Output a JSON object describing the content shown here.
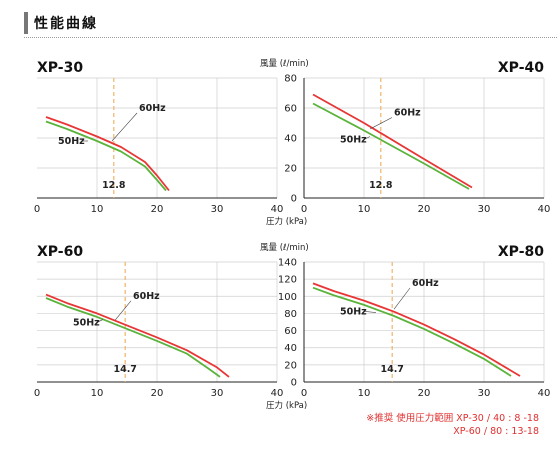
{
  "header": {
    "title": "性能曲線"
  },
  "note": {
    "line1": "※推奨 使用圧力範囲  XP-30 / 40 :  8 -18",
    "line2": "XP-60 / 80 : 13-18"
  },
  "colors": {
    "hz60": "#e83535",
    "hz50": "#5ab33a",
    "marker": "#f0b46a",
    "axis": "#222222",
    "grid": "#cfcfcf"
  },
  "chart_data": [
    {
      "type": "line",
      "model": "XP-30",
      "xlim": [
        0,
        40
      ],
      "ylim": [
        0,
        80
      ],
      "xticks": [
        0,
        10,
        20,
        30,
        40
      ],
      "marker": {
        "x": 12.8,
        "label": "12.8"
      },
      "series": [
        {
          "name": "60Hz",
          "x": [
            1.5,
            5,
            10,
            14,
            18,
            20,
            22
          ],
          "y": [
            54,
            49,
            41,
            34,
            24,
            15,
            5
          ]
        },
        {
          "name": "50Hz",
          "x": [
            1.5,
            5,
            10,
            14,
            18,
            20,
            21.5
          ],
          "y": [
            51,
            46,
            38,
            31,
            21,
            12,
            5
          ]
        }
      ]
    },
    {
      "type": "line",
      "model": "XP-40",
      "ylabel": "風量 (ℓ/min)",
      "xlabel": "圧力 (kPa)",
      "xlim": [
        0,
        40
      ],
      "ylim": [
        0,
        80
      ],
      "xticks": [
        0,
        10,
        20,
        30,
        40
      ],
      "yticks": [
        0,
        20,
        40,
        60,
        80
      ],
      "marker": {
        "x": 12.8,
        "label": "12.8"
      },
      "series": [
        {
          "name": "60Hz",
          "x": [
            1.5,
            10,
            20,
            28
          ],
          "y": [
            69,
            50,
            26,
            7
          ]
        },
        {
          "name": "50Hz",
          "x": [
            1.5,
            10,
            20,
            27.5
          ],
          "y": [
            63,
            45,
            23,
            6
          ]
        }
      ]
    },
    {
      "type": "line",
      "model": "XP-60",
      "xlim": [
        0,
        40
      ],
      "ylim": [
        0,
        140
      ],
      "xticks": [
        0,
        10,
        20,
        30,
        40
      ],
      "marker": {
        "x": 14.7,
        "label": "14.7"
      },
      "series": [
        {
          "name": "60Hz",
          "x": [
            1.5,
            5,
            10,
            15,
            20,
            25,
            30,
            32
          ],
          "y": [
            102,
            92,
            80,
            66,
            52,
            37,
            17,
            6
          ]
        },
        {
          "name": "50Hz",
          "x": [
            1.5,
            5,
            10,
            15,
            20,
            25,
            28.5,
            30.5
          ],
          "y": [
            98,
            88,
            76,
            62,
            48,
            33,
            16,
            6
          ]
        }
      ]
    },
    {
      "type": "line",
      "model": "XP-80",
      "ylabel": "風量 (ℓ/min)",
      "xlabel": "圧力 (kPa)",
      "xlim": [
        0,
        40
      ],
      "ylim": [
        0,
        140
      ],
      "xticks": [
        0,
        10,
        20,
        30,
        40
      ],
      "yticks": [
        0,
        20,
        40,
        60,
        80,
        100,
        120,
        140
      ],
      "marker": {
        "x": 14.7,
        "label": "14.7"
      },
      "series": [
        {
          "name": "60Hz",
          "x": [
            1.5,
            5,
            10,
            15,
            20,
            25,
            30,
            36
          ],
          "y": [
            115,
            106,
            95,
            82,
            67,
            50,
            32,
            7
          ]
        },
        {
          "name": "50Hz",
          "x": [
            1.5,
            5,
            10,
            15,
            20,
            25,
            30,
            34.5
          ],
          "y": [
            110,
            101,
            90,
            77,
            62,
            45,
            27,
            7
          ]
        }
      ]
    }
  ]
}
